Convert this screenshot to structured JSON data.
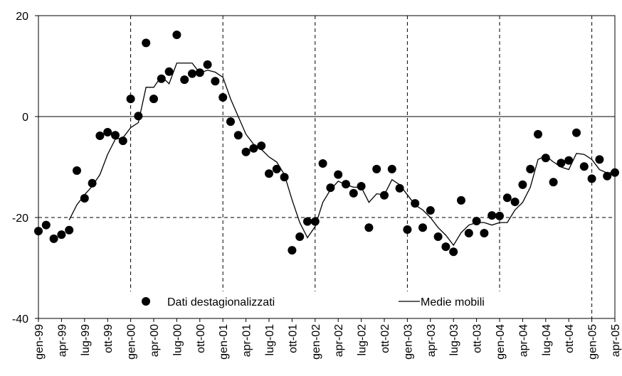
{
  "chart_data": {
    "type": "scatter-line",
    "categories": [
      "gen-99",
      null,
      null,
      "apr-99",
      null,
      null,
      "lug-99",
      null,
      null,
      "ott-99",
      null,
      null,
      "gen-00",
      null,
      null,
      "apr-00",
      null,
      null,
      "lug-00",
      null,
      null,
      "ott-00",
      null,
      null,
      "gen-01",
      null,
      null,
      "apr-01",
      null,
      null,
      "lug-01",
      null,
      null,
      "ott-01",
      null,
      null,
      "gen-02",
      null,
      null,
      "apr-02",
      null,
      null,
      "lug-02",
      null,
      null,
      "ott-02",
      null,
      null,
      "gen-03",
      null,
      null,
      "apr-03",
      null,
      null,
      "lug-03",
      null,
      null,
      "ott-03",
      null,
      null,
      "gen-04",
      null,
      null,
      "apr-04",
      null,
      null,
      "lug-04",
      null,
      null,
      "ott-04",
      null,
      null,
      "gen-05",
      null,
      null,
      "apr-05"
    ],
    "series": [
      {
        "name": "Dati destagionalizzati",
        "style": "dots",
        "color": "#000000",
        "values": [
          -22.7,
          -21.5,
          -24.2,
          -23.4,
          -22.5,
          -10.7,
          -16.2,
          -13.2,
          -3.8,
          -3.1,
          -3.7,
          -4.8,
          3.5,
          0.1,
          14.6,
          3.5,
          7.5,
          8.9,
          16.2,
          7.3,
          8.5,
          8.7,
          10.3,
          7.0,
          3.8,
          -1.0,
          -3.7,
          -7.0,
          -6.3,
          -5.8,
          -11.3,
          -10.4,
          -12.0,
          -26.5,
          -23.8,
          -20.8,
          -20.8,
          -9.3,
          -14.1,
          -11.5,
          -13.4,
          -15.2,
          -13.8,
          -22.0,
          -10.4,
          -15.6,
          -10.4,
          -14.2,
          -22.4,
          -17.2,
          -22.0,
          -18.6,
          -23.8,
          -25.8,
          -26.8,
          -16.6,
          -23.1,
          -20.7,
          -23.1,
          -19.6,
          -19.7,
          -16.1,
          -16.9,
          -13.5,
          -10.4,
          -3.5,
          -8.2,
          -13.0,
          -9.2,
          -8.7,
          -3.2,
          -9.9,
          -12.3,
          -8.5,
          -11.8,
          -11.1
        ]
      },
      {
        "name": "Medie mobili",
        "style": "line",
        "color": "#000000",
        "values": [
          null,
          null,
          null,
          null,
          -20.5,
          -17.5,
          -15.5,
          -13.8,
          -11.5,
          -7.5,
          -4.5,
          -4.2,
          -2.2,
          -1.2,
          5.8,
          5.8,
          8.0,
          6.5,
          10.6,
          10.6,
          10.6,
          8.6,
          9.2,
          8.8,
          7.8,
          3.5,
          0.0,
          -3.5,
          -5.5,
          -6.5,
          -8.0,
          -9.0,
          -11.5,
          -16.5,
          -21.0,
          -24.0,
          -21.8,
          -17.0,
          -14.5,
          -12.8,
          -13.5,
          -14.0,
          -14.0,
          -17.0,
          -15.3,
          -15.5,
          -12.5,
          -13.5,
          -15.5,
          -17.5,
          -18.5,
          -20.0,
          -22.0,
          -23.5,
          -25.5,
          -23.0,
          -21.5,
          -21.0,
          -21.0,
          -21.5,
          -21.0,
          -21.0,
          -18.5,
          -17.0,
          -14.0,
          -8.5,
          -7.8,
          -9.0,
          -10.0,
          -10.5,
          -7.3,
          -7.5,
          -8.5,
          -10.5,
          -11.2,
          -11.0
        ]
      }
    ],
    "ylim": [
      -40,
      20
    ],
    "yticks": [
      -40,
      -20,
      0,
      20
    ],
    "grid": true
  }
}
